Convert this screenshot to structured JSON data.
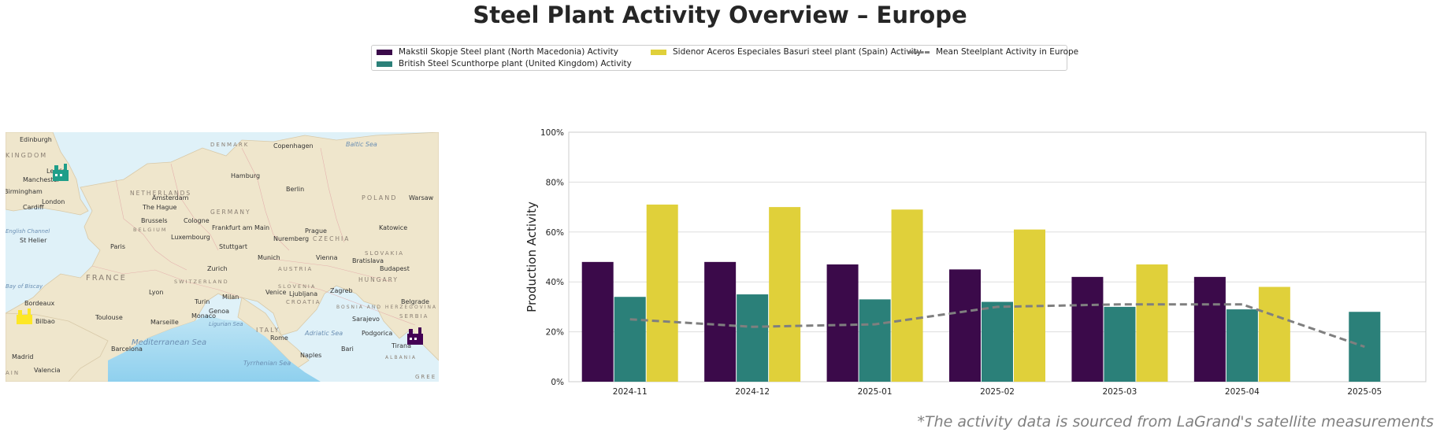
{
  "title": "Steel Plant Activity Overview – Europe",
  "footnote": "*The activity data is sourced from LaGrand's satellite measurements",
  "colors": {
    "makstil": "#3b0a4a",
    "british": "#2b8079",
    "sidenor": "#e0d03a",
    "mean": "#7f7f7f"
  },
  "legend": [
    {
      "label": "Makstil Skopje Steel plant (North Macedonia) Activity",
      "color": "#3b0a4a",
      "kind": "bar"
    },
    {
      "label": "British Steel Scunthorpe plant (United Kingdom) Activity",
      "color": "#2b8079",
      "kind": "bar"
    },
    {
      "label": "Sidenor Aceros Especiales Basuri steel plant (Spain) Activity",
      "color": "#e0d03a",
      "kind": "bar"
    },
    {
      "label": "Mean Steelplant Activity in Europe",
      "color": "#7f7f7f",
      "kind": "dashed-line"
    }
  ],
  "map": {
    "cities": [
      "Edinburgh",
      "Leeds",
      "Manchester",
      "Birmingham",
      "London",
      "Cardiff",
      "Hamburg",
      "Copenhagen",
      "Berlin",
      "Amsterdam",
      "The Hague",
      "Brussels",
      "Cologne",
      "Frankfurt am Main",
      "Luxembourg",
      "Paris",
      "Stuttgart",
      "Munich",
      "Nuremberg",
      "Prague",
      "Vienna",
      "Bratislava",
      "Budapest",
      "Katowice",
      "Warsaw",
      "Zurich",
      "Lyon",
      "Turin",
      "Milan",
      "Ljubljana",
      "Zagreb",
      "Belgrade",
      "Sarajevo",
      "Podgorica",
      "Tirana",
      "Monaco",
      "Marseille",
      "Toulouse",
      "Bordeaux",
      "Bilbao",
      "Madrid",
      "Barcelona",
      "Valencia",
      "Rome",
      "Naples",
      "Bari",
      "St Helier",
      "Venice",
      "Genoa"
    ],
    "countries": [
      "DENMARK",
      "NETHERLANDS",
      "GERMANY",
      "BELGIUM",
      "POLAND",
      "CZECHIA",
      "SLOVAKIA",
      "AUSTRIA",
      "HUNGARY",
      "SWITZERLAND",
      "FRANCE",
      "SLOVENIA",
      "CROATIA",
      "BOSNIA AND HERZEGOVINA",
      "SERBIA",
      "ITALY",
      "ALBANIA",
      "KINGDOM",
      "GREE",
      "AIN"
    ],
    "seas": [
      "Baltic Sea",
      "Mediterranean Sea",
      "Tyrrhenian Sea",
      "Adriatic Sea",
      "Ligurian Sea",
      "Bay of Biscay",
      "English Channel"
    ]
  },
  "chart_data": {
    "type": "bar",
    "categories": [
      "2024-11",
      "2024-12",
      "2025-01",
      "2025-02",
      "2025-03",
      "2025-04",
      "2025-05"
    ],
    "ylabel": "Production Activity",
    "ylim": [
      0,
      100
    ],
    "yticks": [
      "0%",
      "20%",
      "40%",
      "60%",
      "80%",
      "100%"
    ],
    "grid": true,
    "legend_position": "top-center",
    "series": [
      {
        "name": "Makstil Skopje Steel plant (North Macedonia) Activity",
        "values": [
          48,
          48,
          47,
          45,
          42,
          42,
          null
        ]
      },
      {
        "name": "British Steel Scunthorpe plant (United Kingdom) Activity",
        "values": [
          34,
          35,
          33,
          32,
          30,
          29,
          28
        ]
      },
      {
        "name": "Sidenor Aceros Especiales Basuri steel plant (Spain) Activity",
        "values": [
          71,
          70,
          69,
          61,
          47,
          38,
          null
        ]
      }
    ],
    "line_series": {
      "name": "Mean Steelplant Activity in Europe",
      "values": [
        25,
        22,
        23,
        30,
        31,
        31,
        14
      ],
      "style": "dashed"
    }
  }
}
